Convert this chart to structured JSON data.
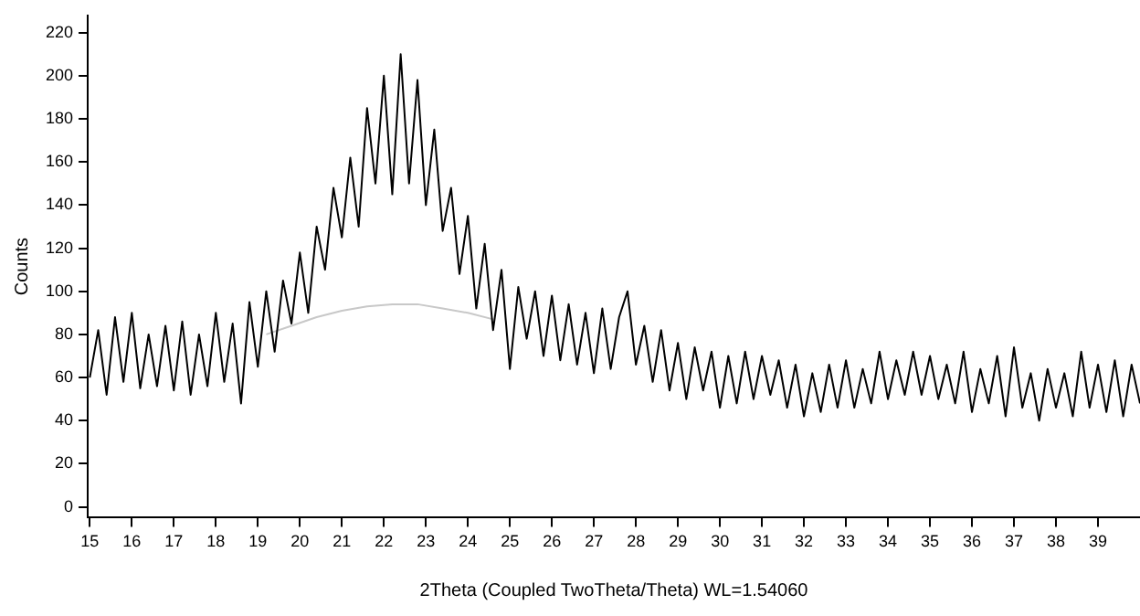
{
  "chart_data": {
    "type": "line",
    "xlabel": "2Theta (Coupled TwoTheta/Theta) WL=1.54060",
    "ylabel": "Counts",
    "xlim": [
      14.95,
      40
    ],
    "xticks": [
      15,
      16,
      17,
      18,
      19,
      20,
      21,
      22,
      23,
      24,
      25,
      26,
      27,
      28,
      29,
      30,
      31,
      32,
      33,
      34,
      35,
      36,
      37,
      38,
      39
    ],
    "ylim": [
      -5,
      228
    ],
    "yticks": [
      0,
      20,
      40,
      60,
      80,
      100,
      120,
      140,
      160,
      180,
      200,
      220
    ],
    "grid": false,
    "legend": false,
    "marker": "none",
    "line_style": "solid",
    "series": [
      {
        "color": "#000000",
        "x": [
          15.0,
          15.2,
          15.4,
          15.6,
          15.8,
          16.0,
          16.2,
          16.4,
          16.6,
          16.8,
          17.0,
          17.2,
          17.4,
          17.6,
          17.8,
          18.0,
          18.2,
          18.4,
          18.6,
          18.8,
          19.0,
          19.2,
          19.4,
          19.6,
          19.8,
          20.0,
          20.2,
          20.4,
          20.6,
          20.8,
          21.0,
          21.2,
          21.4,
          21.6,
          21.8,
          22.0,
          22.2,
          22.4,
          22.6,
          22.8,
          23.0,
          23.2,
          23.4,
          23.6,
          23.8,
          24.0,
          24.2,
          24.4,
          24.6,
          24.8,
          25.0,
          25.2,
          25.4,
          25.6,
          25.8,
          26.0,
          26.2,
          26.4,
          26.6,
          26.8,
          27.0,
          27.2,
          27.4,
          27.6,
          27.8,
          28.0,
          28.2,
          28.4,
          28.6,
          28.8,
          29.0,
          29.2,
          29.4,
          29.6,
          29.8,
          30.0,
          30.2,
          30.4,
          30.6,
          30.8,
          31.0,
          31.2,
          31.4,
          31.6,
          31.8,
          32.0,
          32.2,
          32.4,
          32.6,
          32.8,
          33.0,
          33.2,
          33.4,
          33.6,
          33.8,
          34.0,
          34.2,
          34.4,
          34.6,
          34.8,
          35.0,
          35.2,
          35.4,
          35.6,
          35.8,
          36.0,
          36.2,
          36.4,
          36.6,
          36.8,
          37.0,
          37.2,
          37.4,
          37.6,
          37.8,
          38.0,
          38.2,
          38.4,
          38.6,
          38.8,
          39.0,
          39.2,
          39.4,
          39.6,
          39.8,
          40.0
        ],
        "values": [
          60,
          82,
          52,
          88,
          58,
          90,
          55,
          80,
          56,
          84,
          54,
          86,
          52,
          80,
          56,
          90,
          58,
          85,
          48,
          95,
          65,
          100,
          72,
          105,
          85,
          118,
          90,
          130,
          110,
          148,
          125,
          162,
          130,
          185,
          150,
          200,
          145,
          210,
          150,
          198,
          140,
          175,
          128,
          148,
          108,
          135,
          92,
          122,
          82,
          110,
          64,
          102,
          78,
          100,
          70,
          98,
          68,
          94,
          66,
          90,
          62,
          92,
          64,
          88,
          100,
          66,
          84,
          58,
          82,
          54,
          76,
          50,
          74,
          54,
          72,
          46,
          70,
          48,
          72,
          50,
          70,
          52,
          68,
          46,
          66,
          42,
          62,
          44,
          66,
          46,
          68,
          46,
          64,
          48,
          72,
          50,
          68,
          52,
          72,
          52,
          70,
          50,
          66,
          48,
          72,
          44,
          64,
          48,
          70,
          42,
          74,
          46,
          62,
          40,
          64,
          46,
          62,
          42,
          72,
          46,
          66,
          44,
          68,
          42,
          66,
          48
        ]
      },
      {
        "color": "#c8c8c8",
        "x": [
          19.2,
          19.8,
          20.4,
          21.0,
          21.6,
          22.2,
          22.8,
          23.4,
          24.0,
          24.6
        ],
        "values": [
          80,
          84,
          88,
          91,
          93,
          94,
          94,
          92,
          90,
          87
        ]
      }
    ]
  }
}
